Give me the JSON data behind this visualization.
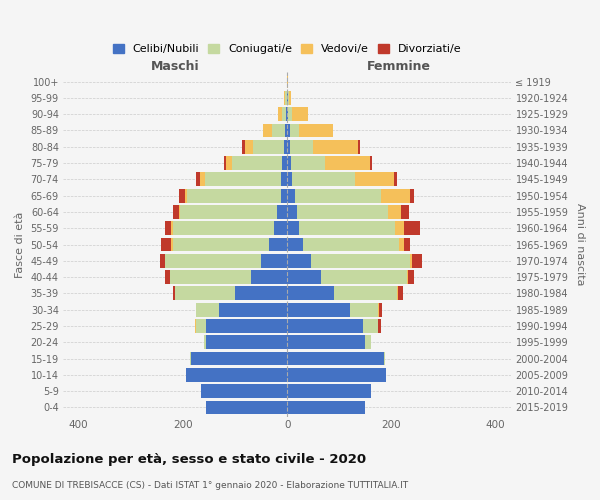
{
  "age_groups": [
    "0-4",
    "5-9",
    "10-14",
    "15-19",
    "20-24",
    "25-29",
    "30-34",
    "35-39",
    "40-44",
    "45-49",
    "50-54",
    "55-59",
    "60-64",
    "65-69",
    "70-74",
    "75-79",
    "80-84",
    "85-89",
    "90-94",
    "95-99",
    "100+"
  ],
  "birth_years": [
    "2015-2019",
    "2010-2014",
    "2005-2009",
    "2000-2004",
    "1995-1999",
    "1990-1994",
    "1985-1989",
    "1980-1984",
    "1975-1979",
    "1970-1974",
    "1965-1969",
    "1960-1964",
    "1955-1959",
    "1950-1954",
    "1945-1949",
    "1940-1944",
    "1935-1939",
    "1930-1934",
    "1925-1929",
    "1920-1924",
    "≤ 1919"
  ],
  "male": {
    "celibi": [
      155,
      165,
      195,
      185,
      155,
      155,
      130,
      100,
      70,
      50,
      35,
      25,
      20,
      12,
      12,
      10,
      6,
      4,
      2,
      1,
      0
    ],
    "coniugati": [
      0,
      0,
      0,
      2,
      5,
      20,
      45,
      115,
      155,
      185,
      185,
      195,
      185,
      180,
      145,
      95,
      60,
      25,
      8,
      3,
      0
    ],
    "vedovi": [
      0,
      0,
      0,
      0,
      0,
      2,
      0,
      0,
      0,
      0,
      2,
      2,
      2,
      5,
      10,
      12,
      15,
      18,
      8,
      2,
      0
    ],
    "divorziati": [
      0,
      0,
      0,
      0,
      0,
      0,
      0,
      5,
      10,
      10,
      20,
      12,
      12,
      10,
      8,
      5,
      5,
      0,
      0,
      0,
      0
    ]
  },
  "female": {
    "nubili": [
      150,
      160,
      190,
      185,
      150,
      145,
      120,
      90,
      65,
      45,
      30,
      22,
      18,
      15,
      10,
      8,
      5,
      5,
      2,
      1,
      0
    ],
    "coniugate": [
      0,
      0,
      0,
      2,
      10,
      30,
      55,
      120,
      165,
      190,
      185,
      185,
      175,
      165,
      120,
      65,
      45,
      18,
      8,
      2,
      0
    ],
    "vedove": [
      0,
      0,
      0,
      0,
      0,
      0,
      2,
      2,
      2,
      5,
      10,
      18,
      25,
      55,
      75,
      85,
      85,
      65,
      30,
      5,
      1
    ],
    "divorziate": [
      0,
      0,
      0,
      0,
      0,
      5,
      5,
      10,
      12,
      18,
      10,
      30,
      15,
      8,
      5,
      5,
      5,
      0,
      0,
      0,
      0
    ]
  },
  "colors": {
    "celibi": "#4472c4",
    "coniugati": "#c5d9a0",
    "vedovi": "#f5c05a",
    "divorziati": "#c0392b"
  },
  "title": "Popolazione per età, sesso e stato civile - 2020",
  "subtitle": "COMUNE DI TREBISACCE (CS) - Dati ISTAT 1° gennaio 2020 - Elaborazione TUTTITALIA.IT",
  "xlabel_left": "Maschi",
  "xlabel_right": "Femmine",
  "ylabel_left": "Fasce di età",
  "ylabel_right": "Anni di nascita",
  "xlim": 430,
  "legend_labels": [
    "Celibi/Nubili",
    "Coniugati/e",
    "Vedovi/e",
    "Divorziati/e"
  ],
  "background_color": "#f5f5f5"
}
